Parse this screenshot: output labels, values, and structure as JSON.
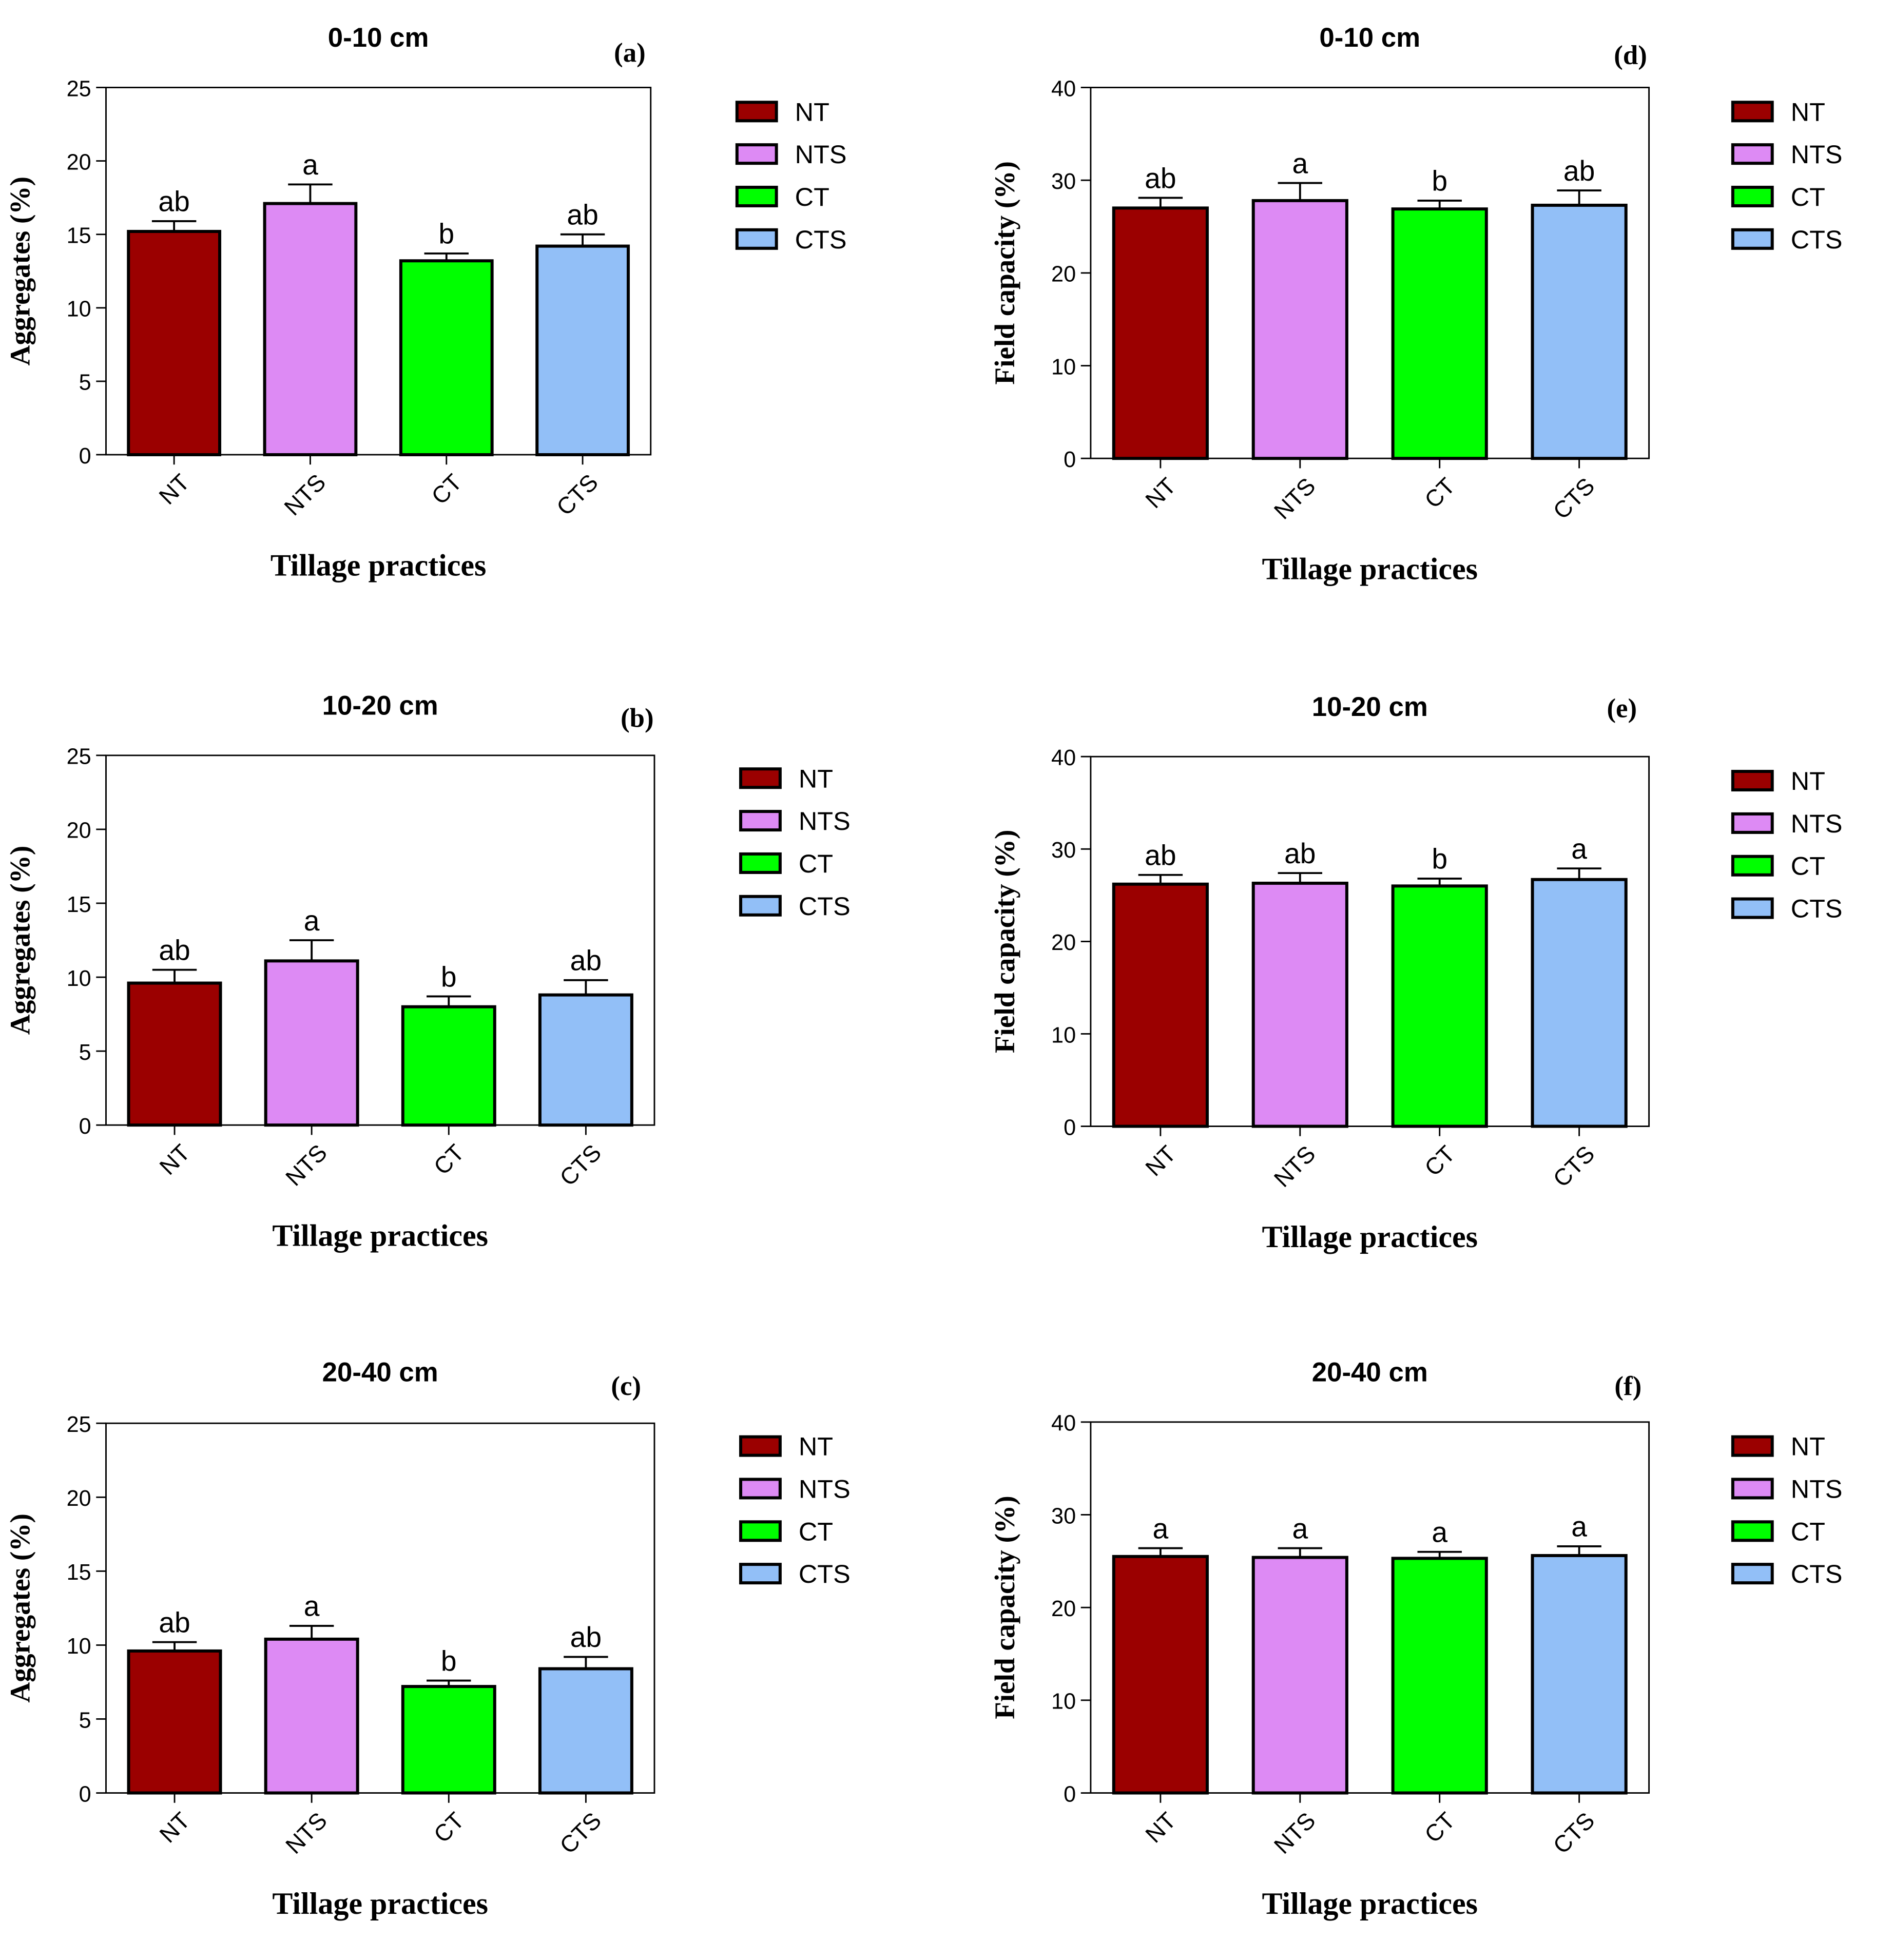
{
  "legend_entries": [
    "NT",
    "NTS",
    "CT",
    "CTS"
  ],
  "colors": {
    "NT": "#9b0000",
    "NTS": "#dd8af4",
    "CT": "#00ff00",
    "CTS": "#92bff7",
    "outline": "#000000"
  },
  "chart_data": [
    {
      "id": "a",
      "type": "bar",
      "panel_label": "(a)",
      "title": "0-10 cm",
      "xlabel": "Tillage practices",
      "ylabel": "Aggregates (%)",
      "ylim": [
        0,
        25
      ],
      "yticks": [
        0,
        5,
        10,
        15,
        20,
        25
      ],
      "categories": [
        "NT",
        "NTS",
        "CT",
        "CTS"
      ],
      "values": [
        15.2,
        17.1,
        13.2,
        14.2
      ],
      "errors": [
        0.7,
        1.3,
        0.5,
        0.8
      ],
      "letters": [
        "ab",
        "a",
        "b",
        "ab"
      ],
      "legend": [
        "NT",
        "NTS",
        "CT",
        "CTS"
      ]
    },
    {
      "id": "b",
      "type": "bar",
      "panel_label": "(b)",
      "title": "10-20 cm",
      "xlabel": "Tillage practices",
      "ylabel": "Aggregates (%)",
      "ylim": [
        0,
        25
      ],
      "yticks": [
        0,
        5,
        10,
        15,
        20,
        25
      ],
      "categories": [
        "NT",
        "NTS",
        "CT",
        "CTS"
      ],
      "values": [
        9.6,
        11.1,
        8.0,
        8.8
      ],
      "errors": [
        0.9,
        1.4,
        0.7,
        1.0
      ],
      "letters": [
        "ab",
        "a",
        "b",
        "ab"
      ],
      "legend": [
        "NT",
        "NTS",
        "CT",
        "CTS"
      ]
    },
    {
      "id": "c",
      "type": "bar",
      "panel_label": "(c)",
      "title": "20-40 cm",
      "xlabel": "Tillage practices",
      "ylabel": "Aggregates (%)",
      "ylim": [
        0,
        25
      ],
      "yticks": [
        0,
        5,
        10,
        15,
        20,
        25
      ],
      "categories": [
        "NT",
        "NTS",
        "CT",
        "CTS"
      ],
      "values": [
        9.6,
        10.4,
        7.2,
        8.4
      ],
      "errors": [
        0.6,
        0.9,
        0.4,
        0.8
      ],
      "letters": [
        "ab",
        "a",
        "b",
        "ab"
      ],
      "legend": [
        "NT",
        "NTS",
        "CT",
        "CTS"
      ]
    },
    {
      "id": "d",
      "type": "bar",
      "panel_label": "(d)",
      "title": "0-10 cm",
      "xlabel": "Tillage practices",
      "ylabel": "Field capacity (%)",
      "ylim": [
        0,
        40
      ],
      "yticks": [
        0,
        10,
        20,
        30,
        40
      ],
      "categories": [
        "NT",
        "NTS",
        "CT",
        "CTS"
      ],
      "values": [
        27.0,
        27.8,
        26.9,
        27.3
      ],
      "errors": [
        1.1,
        1.9,
        0.9,
        1.6
      ],
      "letters": [
        "ab",
        "a",
        "b",
        "ab"
      ],
      "legend": [
        "NT",
        "NTS",
        "CT",
        "CTS"
      ]
    },
    {
      "id": "e",
      "type": "bar",
      "panel_label": "(e)",
      "title": "10-20 cm",
      "xlabel": "Tillage practices",
      "ylabel": "Field capacity (%)",
      "ylim": [
        0,
        40
      ],
      "yticks": [
        0,
        10,
        20,
        30,
        40
      ],
      "categories": [
        "NT",
        "NTS",
        "CT",
        "CTS"
      ],
      "values": [
        26.2,
        26.3,
        26.0,
        26.7
      ],
      "errors": [
        1.0,
        1.1,
        0.8,
        1.2
      ],
      "letters": [
        "ab",
        "ab",
        "b",
        "a"
      ],
      "legend": [
        "NT",
        "NTS",
        "CT",
        "CTS"
      ]
    },
    {
      "id": "f",
      "type": "bar",
      "panel_label": "(f)",
      "title": "20-40 cm",
      "xlabel": "Tillage practices",
      "ylabel": "Field capacity (%)",
      "ylim": [
        0,
        40
      ],
      "yticks": [
        0,
        10,
        20,
        30,
        40
      ],
      "categories": [
        "NT",
        "NTS",
        "CT",
        "CTS"
      ],
      "values": [
        25.5,
        25.4,
        25.3,
        25.6
      ],
      "errors": [
        0.9,
        1.0,
        0.7,
        1.0
      ],
      "letters": [
        "a",
        "a",
        "a",
        "a"
      ],
      "legend": [
        "NT",
        "NTS",
        "CT",
        "CTS"
      ]
    }
  ]
}
